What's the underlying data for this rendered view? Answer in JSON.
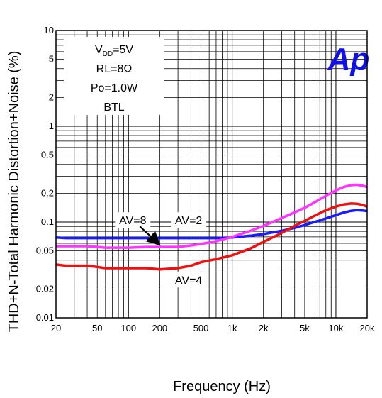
{
  "chart_data": {
    "type": "line",
    "xscale": "log",
    "yscale": "log",
    "xlabel": "Frequency (Hz)",
    "ylabel": "THD+N-Total Harmonic Distortion+Noise (%)",
    "xlim": [
      20,
      20000
    ],
    "ylim": [
      0.01,
      10
    ],
    "x_ticks": [
      {
        "value": 20,
        "label": "20"
      },
      {
        "value": 50,
        "label": "50"
      },
      {
        "value": 100,
        "label": "100"
      },
      {
        "value": 200,
        "label": "200"
      },
      {
        "value": 500,
        "label": "500"
      },
      {
        "value": 1000,
        "label": "1k"
      },
      {
        "value": 2000,
        "label": "2k"
      },
      {
        "value": 5000,
        "label": "5k"
      },
      {
        "value": 10000,
        "label": "10k"
      },
      {
        "value": 20000,
        "label": "20k"
      }
    ],
    "y_ticks": [
      {
        "value": 0.01,
        "label": "0.01"
      },
      {
        "value": 0.02,
        "label": "0.02"
      },
      {
        "value": 0.05,
        "label": "0.05"
      },
      {
        "value": 0.1,
        "label": "0.1"
      },
      {
        "value": 0.2,
        "label": "0.2"
      },
      {
        "value": 0.5,
        "label": "0.5"
      },
      {
        "value": 1,
        "label": "1"
      },
      {
        "value": 2,
        "label": "2"
      },
      {
        "value": 5,
        "label": "5"
      },
      {
        "value": 10,
        "label": "10"
      }
    ],
    "grid": true,
    "conditions": {
      "vdd_main": "V",
      "vdd_sub": "DD",
      "vdd_value": "=5V",
      "rl": "RL=8Ω",
      "po": "Po=1.0W",
      "mode": "BTL"
    },
    "logo_text": "Ap",
    "series": [
      {
        "label": "AV=2",
        "color": "#1a1aff",
        "x": [
          20,
          25,
          30,
          40,
          50,
          70,
          100,
          150,
          200,
          300,
          500,
          700,
          1000,
          1500,
          2000,
          3000,
          4000,
          5000,
          6000,
          7000,
          8000,
          10000,
          12000,
          14000,
          16000,
          18000,
          20000
        ],
        "y": [
          0.069,
          0.068,
          0.068,
          0.068,
          0.068,
          0.068,
          0.068,
          0.068,
          0.068,
          0.068,
          0.068,
          0.068,
          0.069,
          0.072,
          0.075,
          0.081,
          0.087,
          0.093,
          0.099,
          0.104,
          0.109,
          0.118,
          0.126,
          0.131,
          0.133,
          0.132,
          0.13
        ]
      },
      {
        "label": "AV=8",
        "color": "#ff33ff",
        "x": [
          20,
          25,
          30,
          40,
          50,
          60,
          70,
          100,
          150,
          200,
          300,
          400,
          500,
          700,
          1000,
          1500,
          2000,
          3000,
          4000,
          5000,
          6000,
          7000,
          8000,
          10000,
          12000,
          14000,
          16000,
          18000,
          20000
        ],
        "y": [
          0.056,
          0.056,
          0.056,
          0.056,
          0.055,
          0.054,
          0.054,
          0.054,
          0.055,
          0.055,
          0.055,
          0.057,
          0.059,
          0.063,
          0.07,
          0.081,
          0.091,
          0.11,
          0.126,
          0.141,
          0.157,
          0.173,
          0.188,
          0.214,
          0.233,
          0.243,
          0.245,
          0.24,
          0.232
        ]
      },
      {
        "label": "AV=4",
        "color": "#ee1111",
        "x": [
          20,
          25,
          30,
          40,
          50,
          60,
          70,
          100,
          150,
          200,
          300,
          400,
          500,
          700,
          1000,
          1500,
          2000,
          3000,
          4000,
          5000,
          6000,
          7000,
          8000,
          10000,
          12000,
          14000,
          16000,
          18000,
          20000
        ],
        "y": [
          0.036,
          0.035,
          0.035,
          0.035,
          0.034,
          0.033,
          0.033,
          0.033,
          0.033,
          0.032,
          0.033,
          0.035,
          0.038,
          0.041,
          0.045,
          0.053,
          0.062,
          0.077,
          0.091,
          0.103,
          0.114,
          0.124,
          0.133,
          0.145,
          0.153,
          0.156,
          0.155,
          0.151,
          0.145
        ]
      }
    ],
    "annotations": [
      {
        "text": "AV=8",
        "x": 110,
        "y": 0.105,
        "arrow_to": [
          200,
          0.056
        ]
      },
      {
        "text": "AV=2",
        "x": 380,
        "y": 0.105
      },
      {
        "text": "AV=4",
        "x": 380,
        "y": 0.025
      }
    ]
  }
}
